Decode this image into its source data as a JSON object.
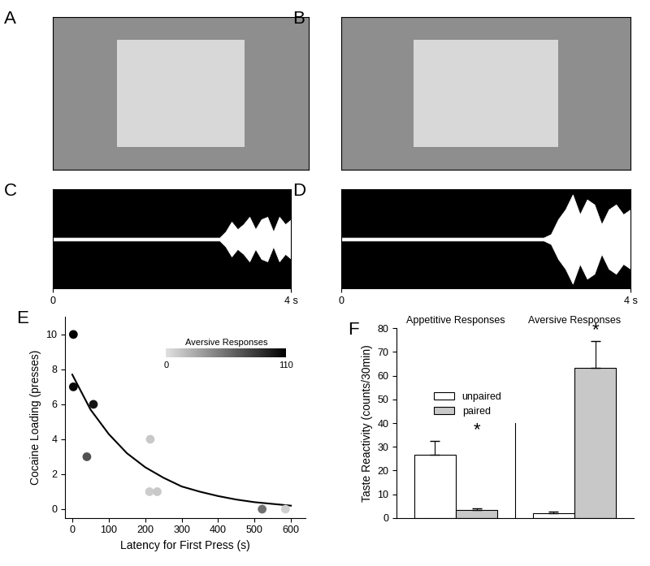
{
  "chart_data": [
    {
      "title": "A",
      "type": "image",
      "tick_labels": false
    },
    {
      "title": "B",
      "type": "image",
      "tick_labels": false
    },
    {
      "title": "C",
      "type": "line",
      "color": "#ffffff",
      "x": [
        0.0,
        0.1,
        0.2,
        0.3,
        0.4,
        0.5,
        0.6,
        0.7,
        0.8,
        0.9,
        1.0,
        1.1,
        1.2,
        1.3,
        1.4,
        1.5,
        1.6,
        1.7,
        1.8,
        1.9,
        2.0,
        2.1,
        2.2,
        2.3,
        2.4,
        2.5,
        2.6,
        2.7,
        2.8,
        2.9,
        3.0,
        3.1,
        3.2,
        3.3,
        3.4,
        3.5,
        3.6,
        3.7,
        3.8,
        3.9,
        4.0
      ],
      "values": [
        0.03,
        0.03,
        0.03,
        0.03,
        0.03,
        0.03,
        0.03,
        0.03,
        0.03,
        0.03,
        0.03,
        0.03,
        0.03,
        0.03,
        0.03,
        0.03,
        0.03,
        0.03,
        0.03,
        0.03,
        0.03,
        0.03,
        0.03,
        0.03,
        0.03,
        0.03,
        0.03,
        0.03,
        0.03,
        0.15,
        0.35,
        0.2,
        0.3,
        0.45,
        0.2,
        0.4,
        0.45,
        0.15,
        0.45,
        0.3,
        0.4
      ],
      "xlim": [
        0,
        4
      ],
      "ylim": [
        -1,
        1
      ],
      "xticks": [
        0,
        {
          "value": 4,
          "label": "4 s"
        }
      ],
      "tick_labels": "x"
    },
    {
      "title": "D",
      "type": "line",
      "color": "#ffffff",
      "x": [
        0.0,
        0.1,
        0.2,
        0.3,
        0.4,
        0.5,
        0.6,
        0.7,
        0.8,
        0.9,
        1.0,
        1.1,
        1.2,
        1.3,
        1.4,
        1.5,
        1.6,
        1.7,
        1.8,
        1.9,
        2.0,
        2.1,
        2.2,
        2.3,
        2.4,
        2.5,
        2.6,
        2.7,
        2.8,
        2.9,
        3.0,
        3.1,
        3.2,
        3.3,
        3.4,
        3.5,
        3.6,
        3.7,
        3.8,
        3.9,
        4.0
      ],
      "values": [
        0.03,
        0.03,
        0.03,
        0.03,
        0.03,
        0.03,
        0.03,
        0.03,
        0.03,
        0.03,
        0.03,
        0.03,
        0.03,
        0.03,
        0.03,
        0.03,
        0.03,
        0.03,
        0.03,
        0.03,
        0.03,
        0.03,
        0.03,
        0.03,
        0.03,
        0.03,
        0.03,
        0.03,
        0.03,
        0.1,
        0.4,
        0.6,
        0.9,
        0.5,
        0.8,
        0.7,
        0.3,
        0.6,
        0.7,
        0.5,
        0.6
      ],
      "xlim": [
        0,
        4
      ],
      "ylim": [
        -1,
        1
      ],
      "xticks": [
        0,
        {
          "value": 4,
          "label": "4 s"
        }
      ],
      "tick_labels": "x"
    },
    {
      "title": "E",
      "type": "scatter",
      "x_label": "Latency for First Press (s)",
      "y_label": "Cocaine Loading (presses)",
      "x": [
        3,
        3,
        58,
        40,
        214,
        212,
        233,
        521,
        585
      ],
      "values": [
        10,
        7,
        6,
        3,
        4,
        1,
        1,
        0,
        0
      ],
      "aversive_responses": [
        110,
        105,
        100,
        70,
        12,
        10,
        12,
        55,
        8
      ],
      "fit": {
        "x": [
          0,
          50,
          100,
          150,
          200,
          250,
          300,
          350,
          400,
          450,
          500,
          550,
          600
        ],
        "values": [
          7.7,
          5.7,
          4.3,
          3.2,
          2.4,
          1.8,
          1.3,
          1.0,
          0.75,
          0.55,
          0.4,
          0.3,
          0.2
        ],
        "color": "#000000"
      },
      "colorbar": {
        "label": "Aversive Responses",
        "range": [
          0,
          110
        ],
        "ticks": [
          0,
          110
        ]
      },
      "xlim": [
        -20,
        640
      ],
      "ylim": [
        -0.5,
        11
      ],
      "xticks": [
        0,
        100,
        200,
        300,
        400,
        500,
        600
      ],
      "yticks": [
        0,
        2,
        4,
        6,
        8,
        10
      ]
    },
    {
      "title": "F",
      "type": "bar",
      "y_label": "Taste Reactivity (counts/30min)",
      "categories": [
        "Appetitive Responses",
        "Aversive Responses"
      ],
      "series": [
        {
          "name": "unpaired",
          "color": "#ffffff",
          "values": [
            26.5,
            2
          ],
          "errors": [
            6,
            0.8
          ]
        },
        {
          "name": "paired",
          "color": "#c8c8c8",
          "values": [
            3.2,
            63.3
          ],
          "errors": [
            0.8,
            11.4
          ]
        }
      ],
      "ylim": [
        0,
        80
      ],
      "yticks": [
        0,
        10,
        20,
        30,
        40,
        50,
        60,
        70,
        80
      ],
      "legend": "center",
      "annotations": [
        {
          "text": "*",
          "category": "Appetitive Responses",
          "series": "paired"
        },
        {
          "text": "*",
          "category": "Aversive Responses",
          "series": "paired"
        }
      ]
    }
  ]
}
